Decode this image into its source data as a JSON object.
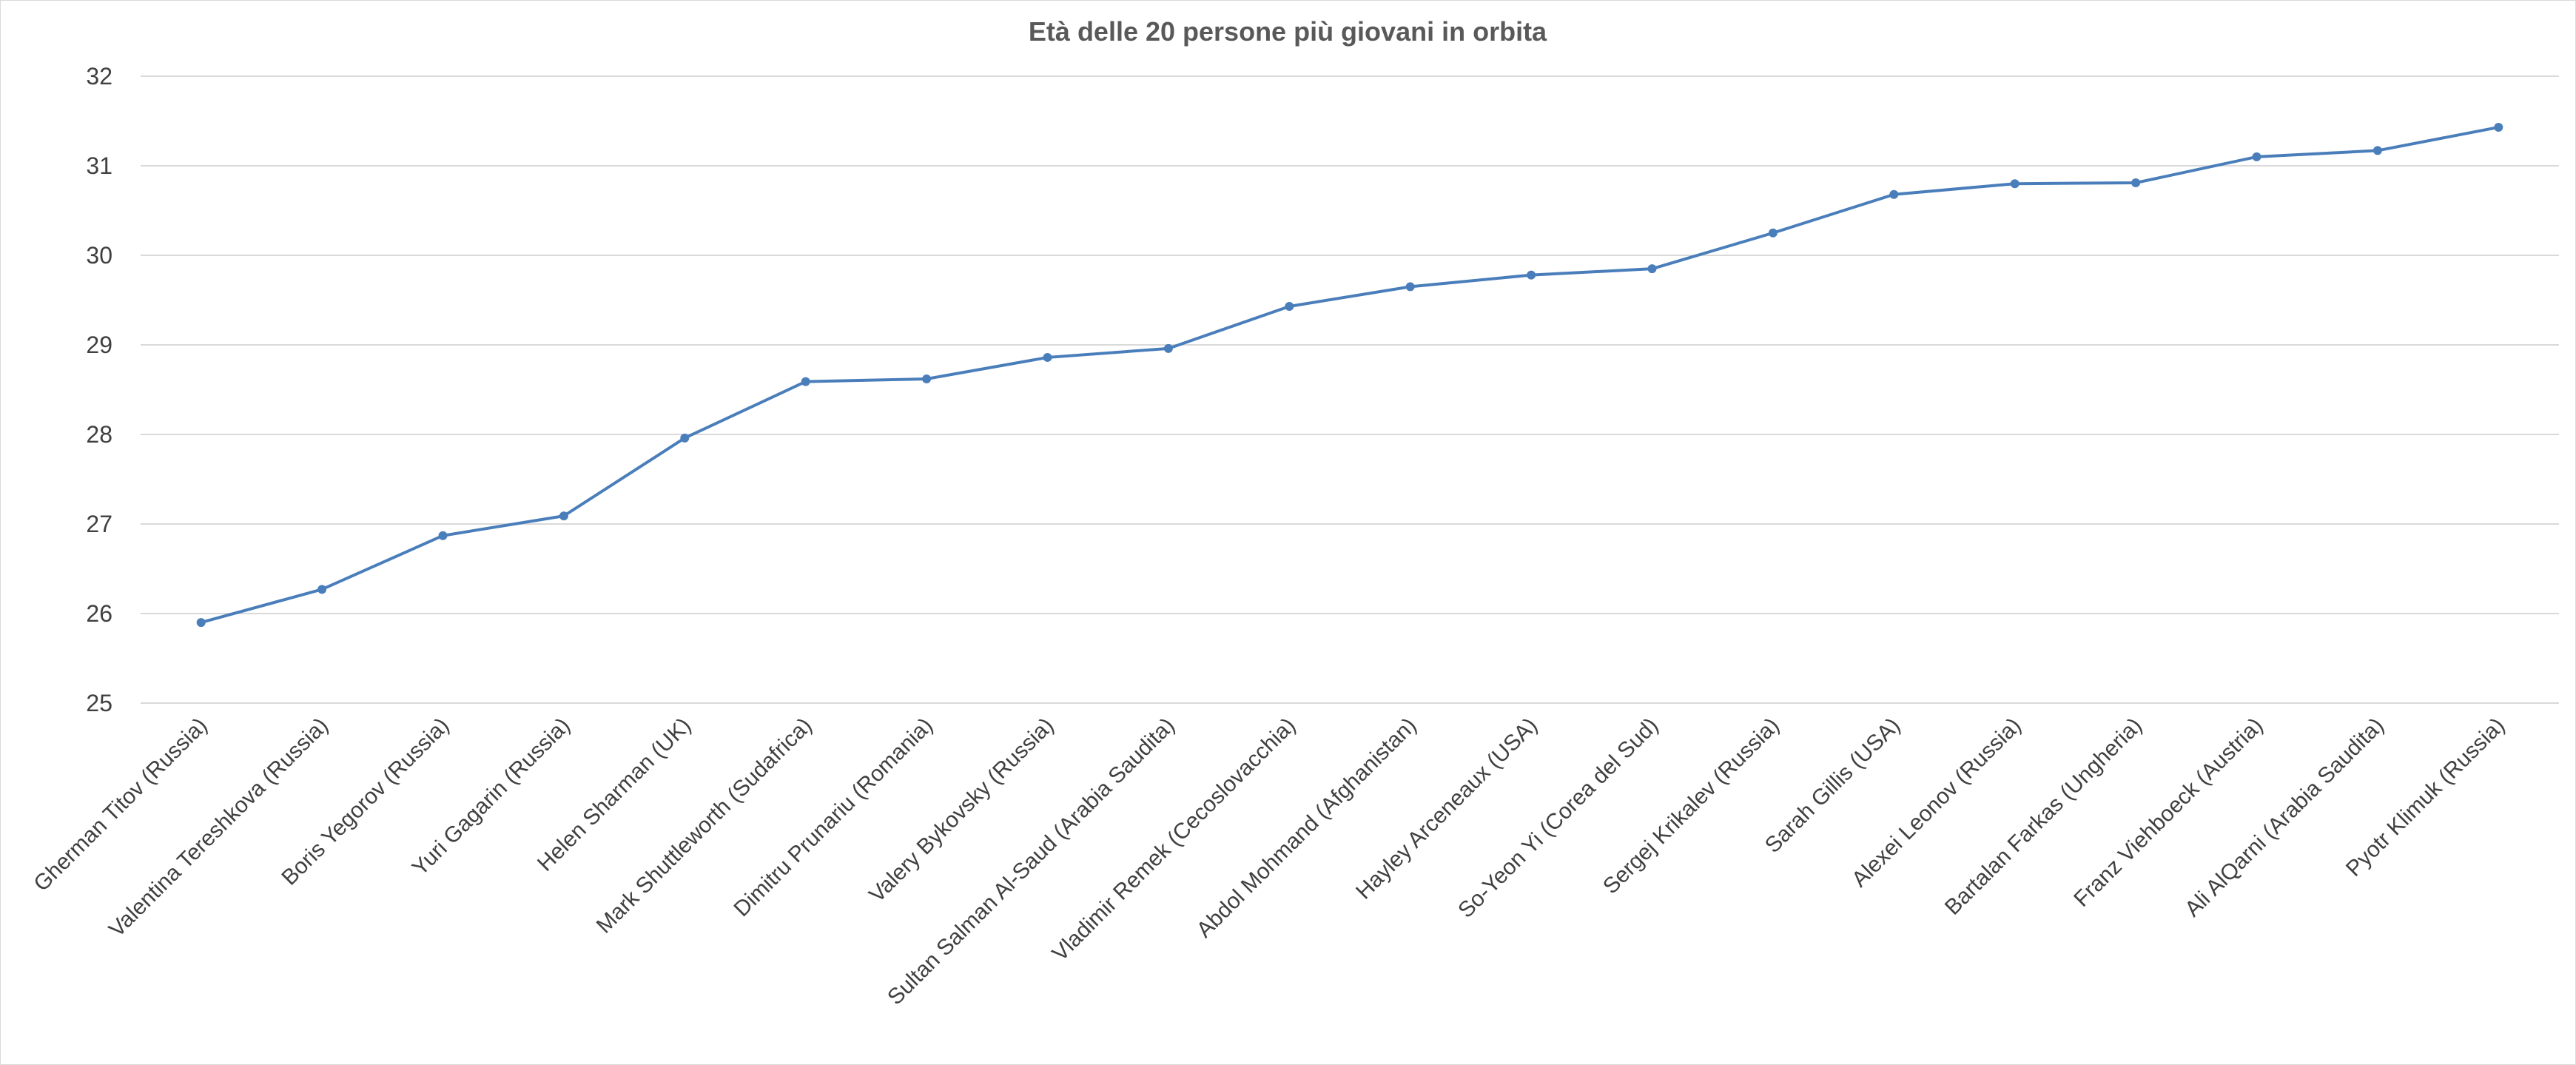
{
  "chart_data": {
    "type": "line",
    "title": "Età delle 20 persone più giovani in orbita",
    "xlabel": "",
    "ylabel": "",
    "ylim": [
      25,
      32
    ],
    "yticks": [
      25,
      26,
      27,
      28,
      29,
      30,
      31,
      32
    ],
    "grid": true,
    "legend": "none",
    "categories": [
      "Gherman Titov (Russia)",
      "Valentina Tereshkova (Russia)",
      "Boris Yegorov (Russia)",
      "Yuri Gagarin (Russia)",
      "Helen Sharman (UK)",
      "Mark Shuttleworth (Sudafrica)",
      "Dimitru Prunariu (Romania)",
      "Valery Bykovsky (Russia)",
      "Sultan Salman Al-Saud (Arabia Saudita)",
      "Vladimir Remek (Cecoslovacchia)",
      "Abdol Mohmand (Afghanistan)",
      "Hayley Arceneaux (USA)",
      "So-Yeon Yi (Corea del Sud)",
      "Sergej Krikalev (Russia)",
      "Sarah Gillis (USA)",
      "Alexei Leonov (Russia)",
      "Bartalan Farkas (Ungheria)",
      "Franz Viehboeck (Austria)",
      "Ali AlQarni (Arabia Saudita)",
      "Pyotr Klimuk (Russia)"
    ],
    "series": [
      {
        "values": [
          25.9,
          26.27,
          26.87,
          27.09,
          27.96,
          28.59,
          28.62,
          28.86,
          28.96,
          29.43,
          29.65,
          29.78,
          29.85,
          30.25,
          30.68,
          30.8,
          30.81,
          31.1,
          31.17,
          31.43
        ],
        "color": "#4a7ebb"
      }
    ]
  }
}
